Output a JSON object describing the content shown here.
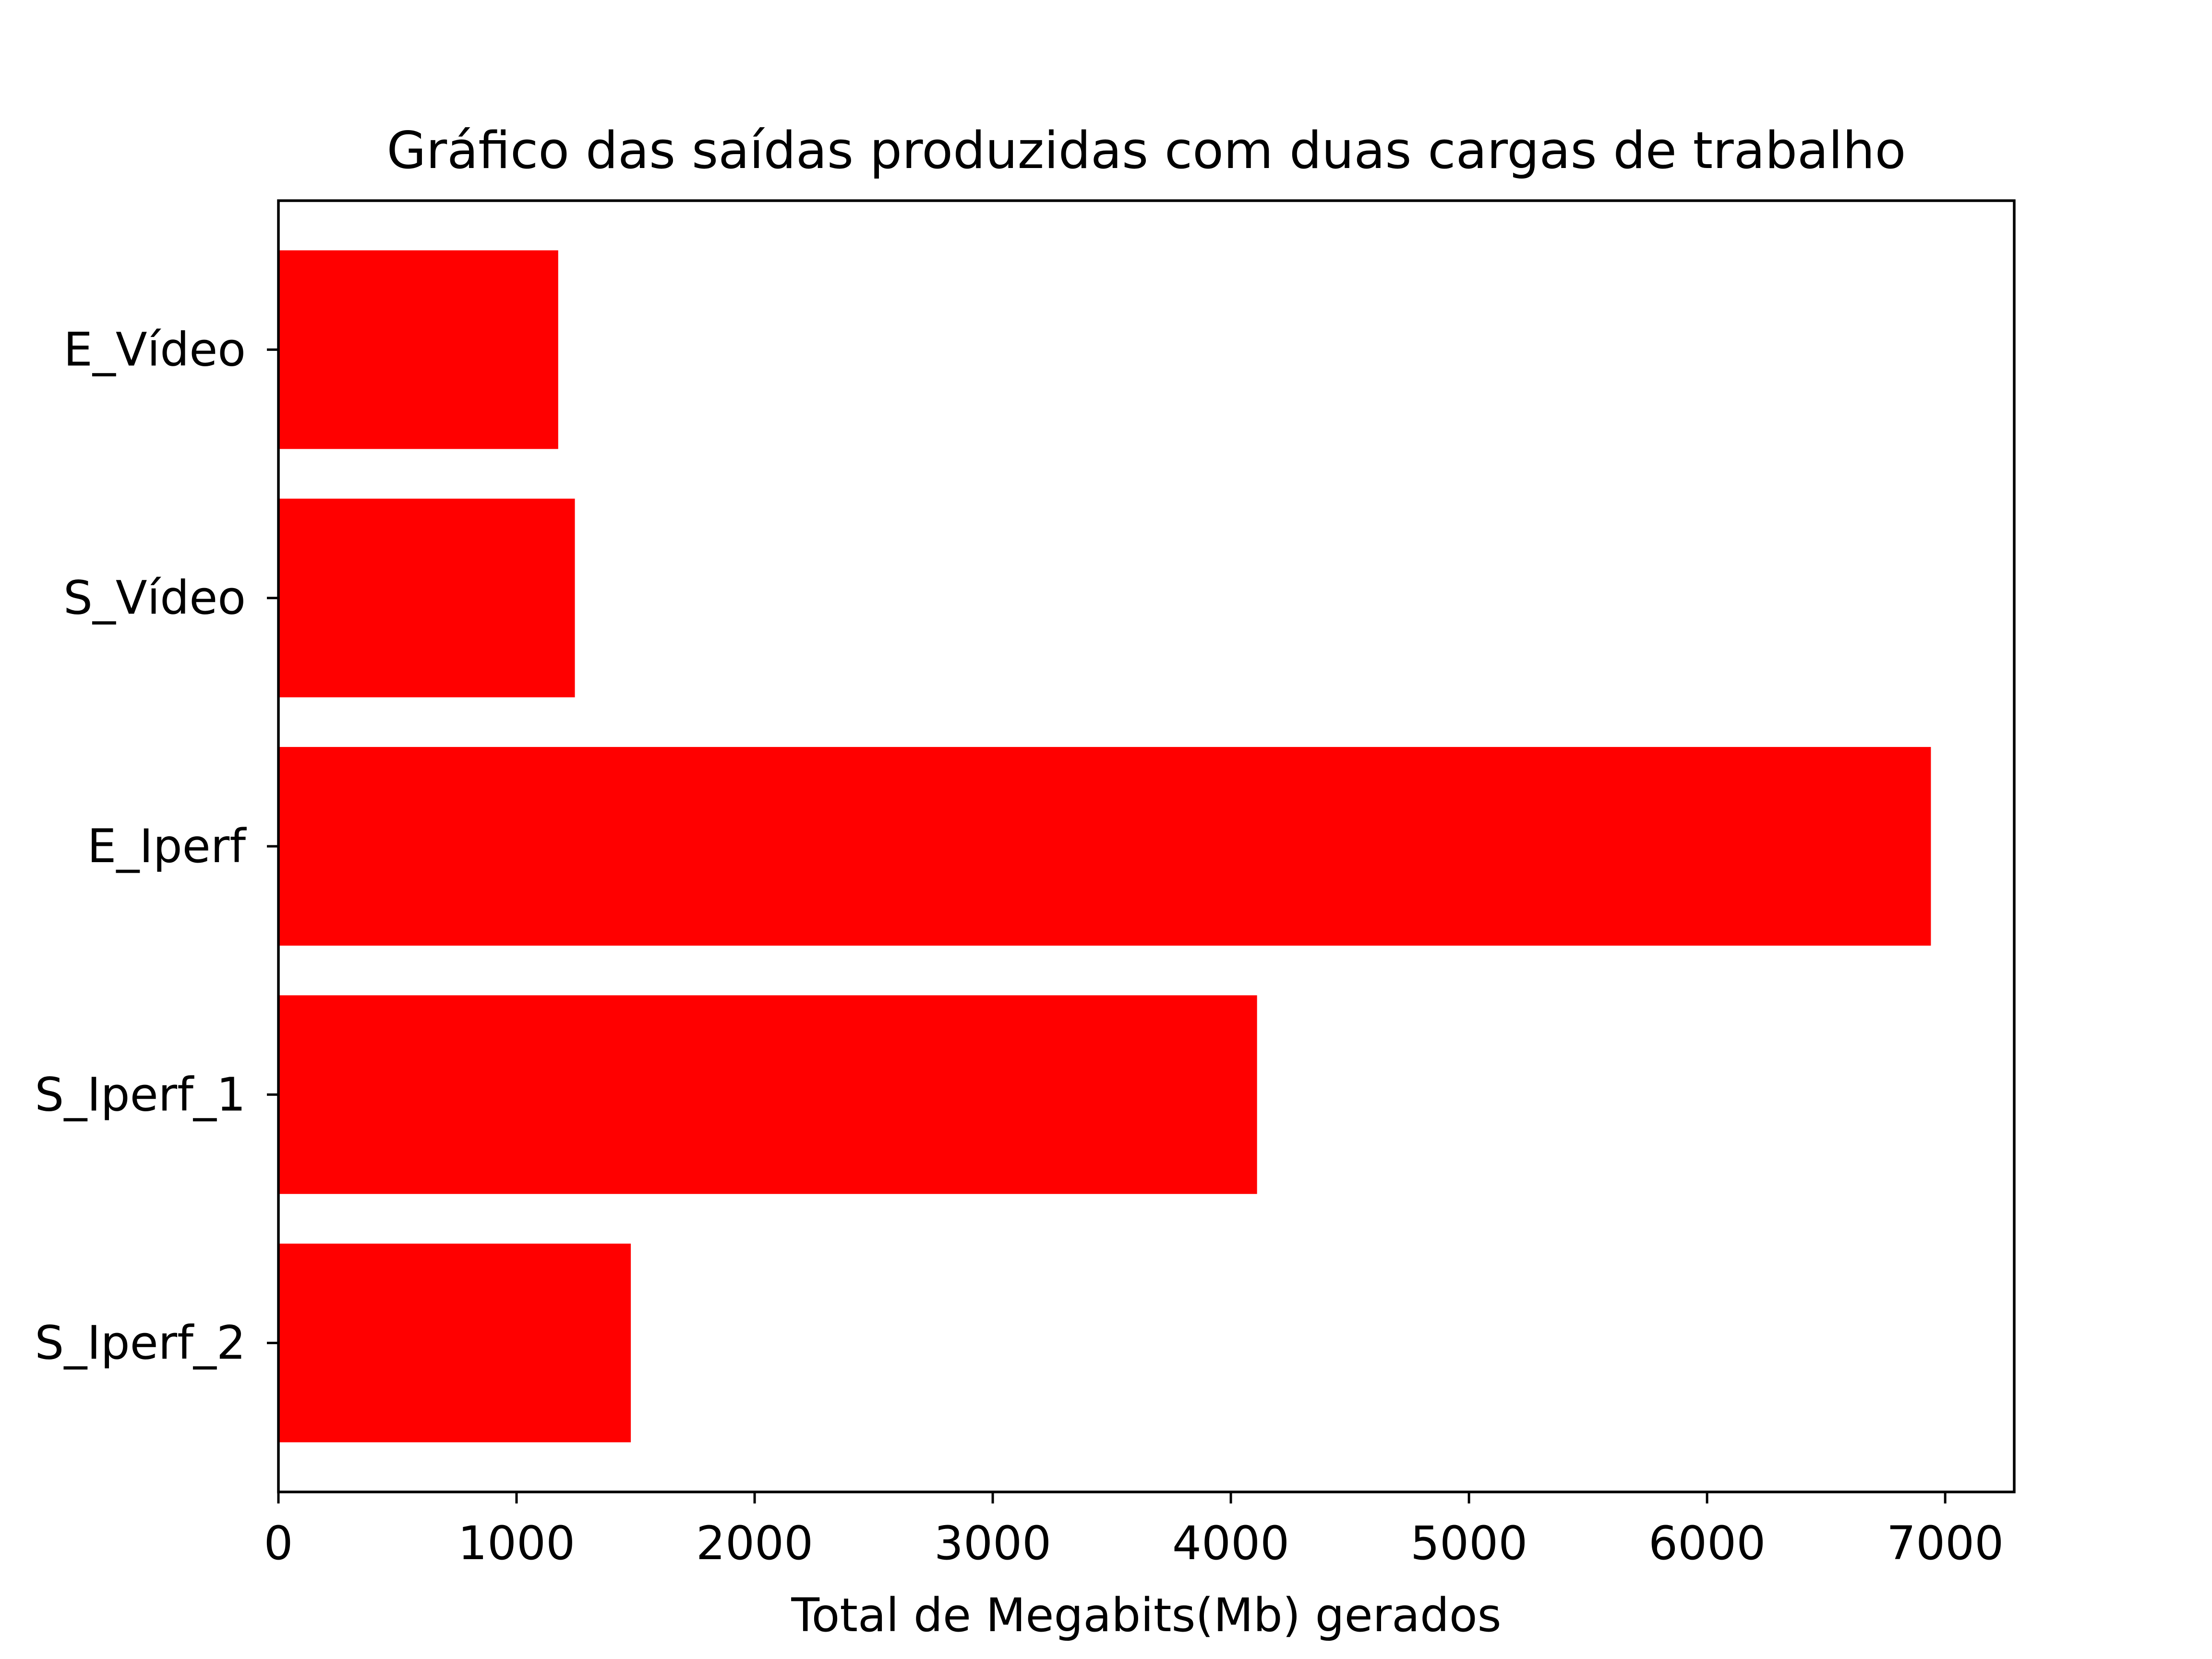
{
  "chart_data": {
    "type": "bar",
    "orientation": "horizontal",
    "title": "Gráfico das saídas produzidas com duas cargas de trabalho",
    "xlabel": "Total de Megabits(Mb) gerados",
    "ylabel": "",
    "categories": [
      "E_Vídeo",
      "S_Vídeo",
      "E_Iperf",
      "S_Iperf_1",
      "S_Iperf_2"
    ],
    "values": [
      1175,
      1245,
      6940,
      4110,
      1480
    ],
    "xlim": [
      0,
      7290
    ],
    "xticks": [
      0,
      1000,
      2000,
      3000,
      4000,
      5000,
      6000,
      7000
    ],
    "xtick_labels": [
      "0",
      "1000",
      "2000",
      "3000",
      "4000",
      "5000",
      "6000",
      "7000"
    ],
    "bar_color": "#ff0000",
    "grid": false,
    "legend": "none"
  }
}
